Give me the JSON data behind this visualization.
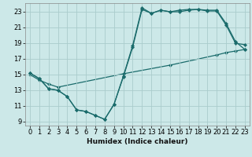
{
  "xlabel": "Humidex (Indice chaleur)",
  "background_color": "#cce8e8",
  "grid_color": "#aacccc",
  "line_color": "#1a6b6b",
  "xlim": [
    -0.5,
    23.5
  ],
  "ylim": [
    8.5,
    24.1
  ],
  "xticks": [
    0,
    1,
    2,
    3,
    4,
    5,
    6,
    7,
    8,
    9,
    10,
    11,
    12,
    13,
    14,
    15,
    16,
    17,
    18,
    19,
    20,
    21,
    22,
    23
  ],
  "yticks": [
    9,
    11,
    13,
    15,
    17,
    19,
    21,
    23
  ],
  "curve1_x": [
    0,
    1,
    2,
    3,
    4,
    5,
    6,
    7,
    8,
    9,
    10,
    11,
    12,
    13,
    14,
    15,
    16,
    17,
    18,
    19,
    20,
    21,
    22,
    23
  ],
  "curve1_y": [
    15.2,
    14.5,
    13.2,
    13.0,
    12.2,
    10.5,
    10.3,
    9.8,
    9.3,
    11.2,
    14.8,
    18.7,
    23.5,
    22.8,
    23.2,
    23.0,
    23.2,
    23.3,
    23.3,
    23.2,
    23.2,
    21.5,
    19.2,
    18.2
  ],
  "curve2_x": [
    0,
    1,
    2,
    3,
    4,
    5,
    6,
    7,
    8,
    9,
    10,
    11,
    12,
    13,
    14,
    15,
    16,
    17,
    18,
    19,
    20,
    21,
    22,
    23
  ],
  "curve2_y": [
    15.2,
    14.5,
    13.2,
    13.0,
    12.2,
    10.5,
    10.3,
    9.8,
    9.3,
    11.2,
    14.7,
    18.5,
    23.3,
    22.8,
    23.2,
    23.0,
    23.0,
    23.2,
    23.3,
    23.1,
    23.1,
    21.3,
    19.0,
    18.8
  ],
  "curve3_x": [
    0,
    1,
    2,
    3,
    10,
    15,
    20,
    21,
    22,
    23
  ],
  "curve3_y": [
    15.0,
    14.3,
    13.8,
    13.4,
    15.1,
    16.2,
    17.5,
    17.8,
    18.0,
    18.2
  ],
  "markersize": 2.2,
  "linewidth": 0.9,
  "tick_fontsize": 6.0,
  "xlabel_fontsize": 6.5
}
